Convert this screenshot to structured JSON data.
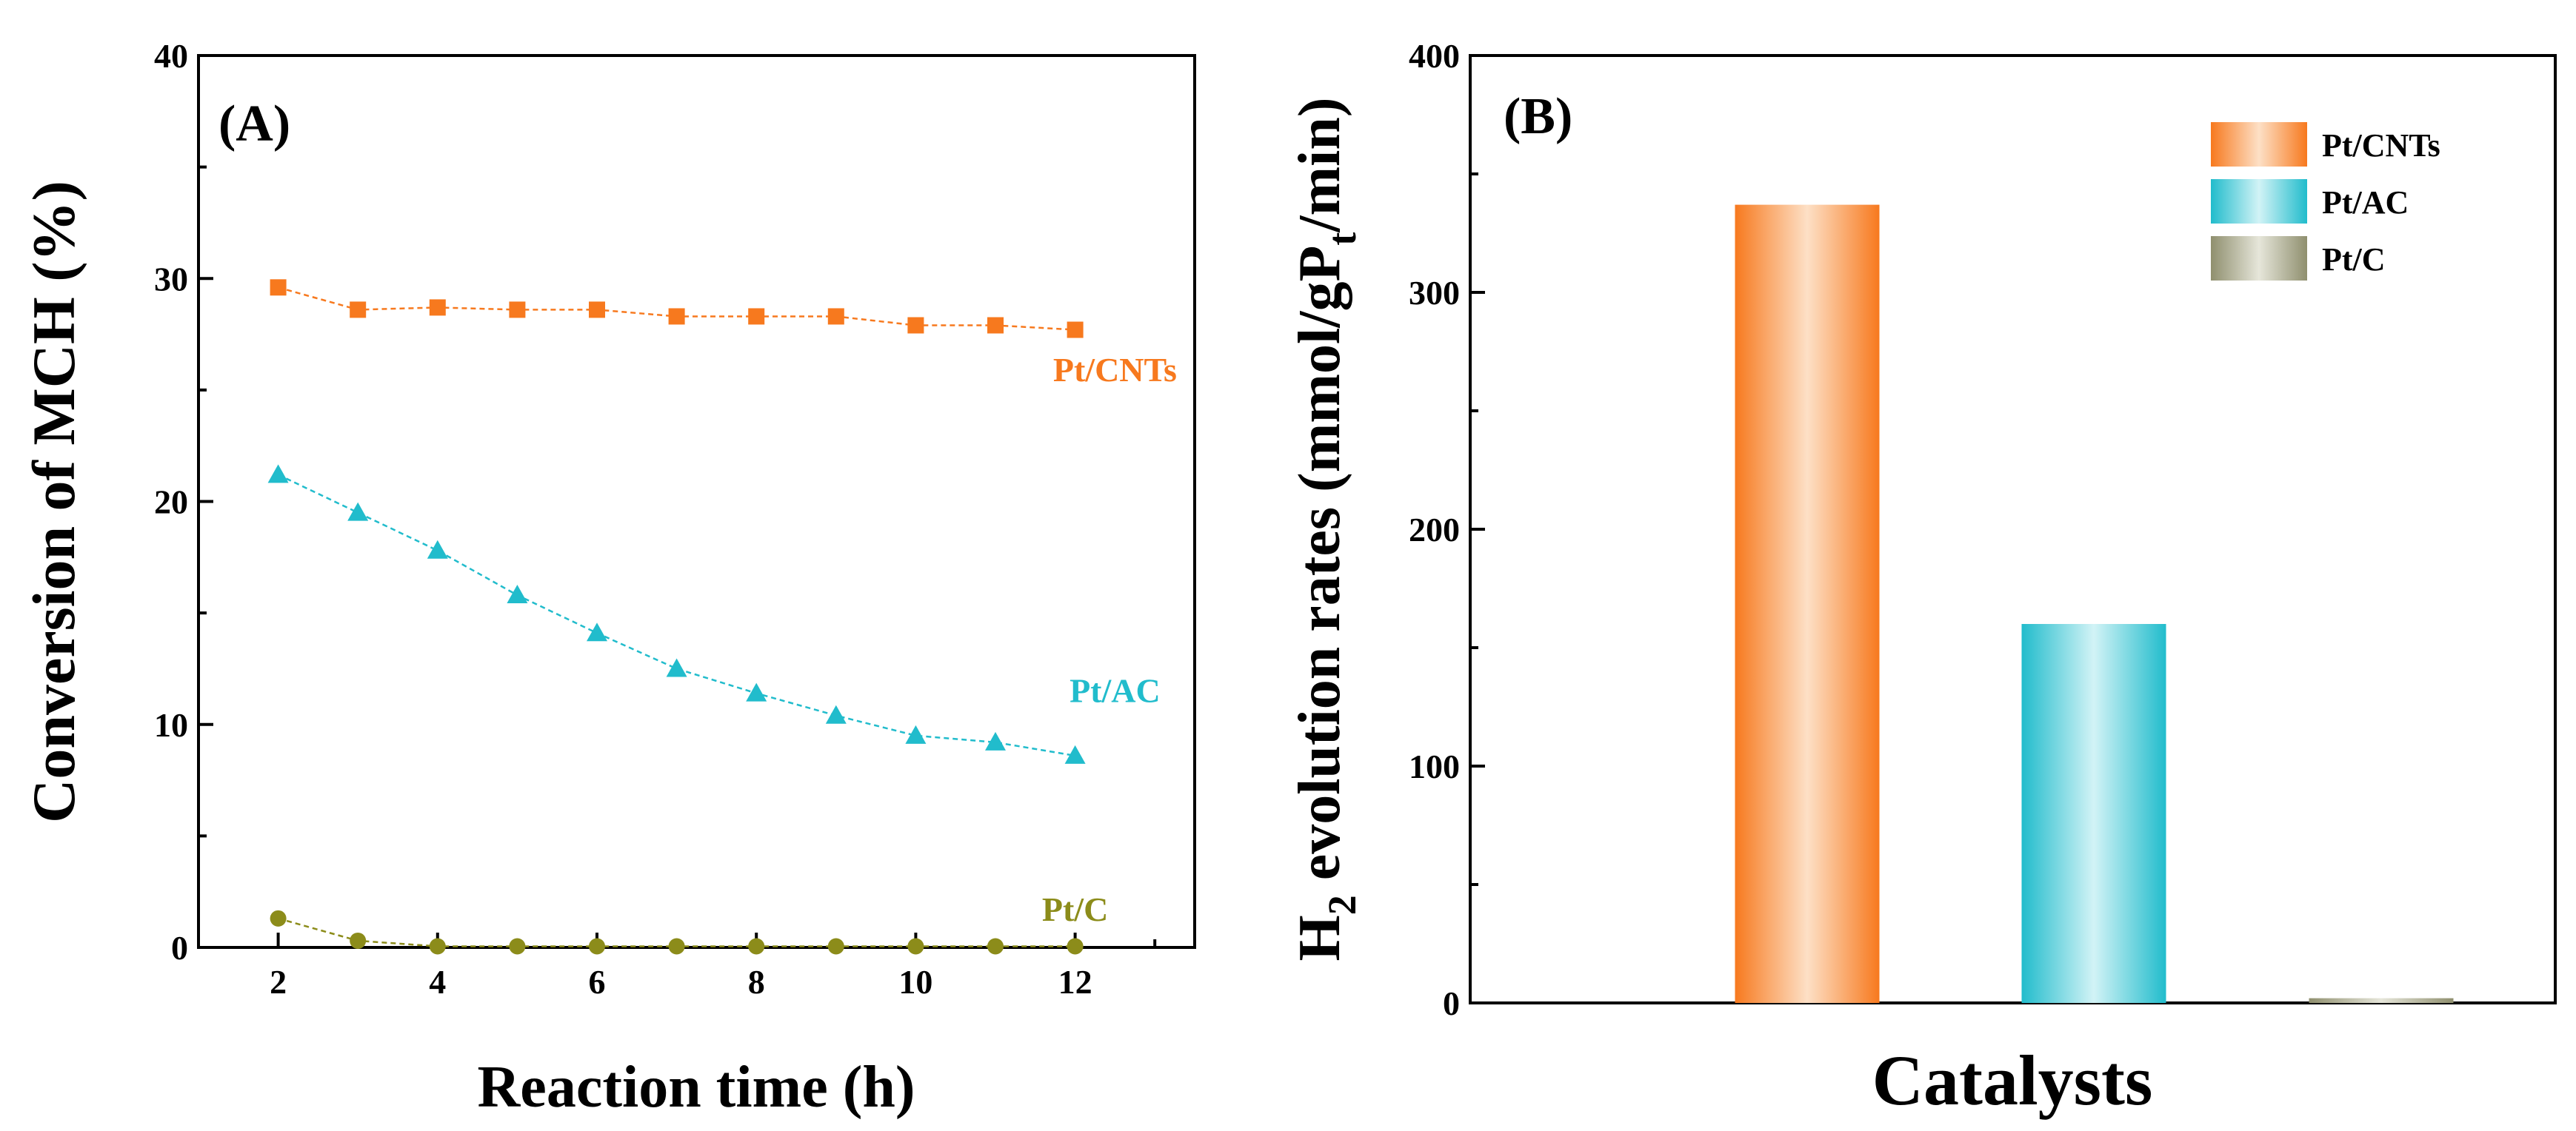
{
  "chart_data": [
    {
      "panel": "(A)",
      "type": "line",
      "xlabel": "Reaction time (h)",
      "ylabel": "Conversion of MCH (%)",
      "xlim": [
        1,
        13.5
      ],
      "ylim": [
        0,
        40
      ],
      "xticks": [
        2,
        4,
        6,
        8,
        10,
        12
      ],
      "yticks": [
        0,
        10,
        20,
        30,
        40
      ],
      "x": [
        2,
        3,
        4,
        5,
        6,
        7,
        8,
        9,
        10,
        11,
        12
      ],
      "series": [
        {
          "name": "Pt/CNTs",
          "color": "#f7791e",
          "marker": "square",
          "values": [
            29.6,
            28.6,
            28.7,
            28.6,
            28.6,
            28.3,
            28.3,
            28.3,
            27.9,
            27.9,
            27.7
          ]
        },
        {
          "name": "Pt/AC",
          "color": "#21bccc",
          "marker": "triangle",
          "values": [
            21.2,
            19.5,
            17.8,
            15.8,
            14.1,
            12.5,
            11.4,
            10.4,
            9.5,
            9.2,
            8.6
          ]
        },
        {
          "name": "Pt/C",
          "color": "#8c8c1a",
          "marker": "circle",
          "values": [
            1.3,
            0.3,
            0.05,
            0.05,
            0.05,
            0.05,
            0.05,
            0.05,
            0.05,
            0.05,
            0.05
          ]
        }
      ]
    },
    {
      "panel": "(B)",
      "type": "bar",
      "xlabel": "Catalysts",
      "ylabel": "H₂ evolution rates (mmol/gPt/min)",
      "ylabel_parts": {
        "h": "H",
        "h_sub": "2",
        "mid": " evolution rates (mmol/gP",
        "t_sub": "t",
        "end": "/min)"
      },
      "ylim": [
        0,
        400
      ],
      "yticks": [
        0,
        100,
        200,
        300,
        400
      ],
      "categories": [
        "Pt/CNTs",
        "Pt/AC",
        "Pt/C"
      ],
      "values": [
        337,
        160,
        2
      ],
      "colors": [
        "#f7791e",
        "#21bccc",
        "#8f8f6e"
      ],
      "legend": [
        "Pt/CNTs",
        "Pt/AC",
        "Pt/C"
      ],
      "legend_position": "top-right"
    }
  ]
}
